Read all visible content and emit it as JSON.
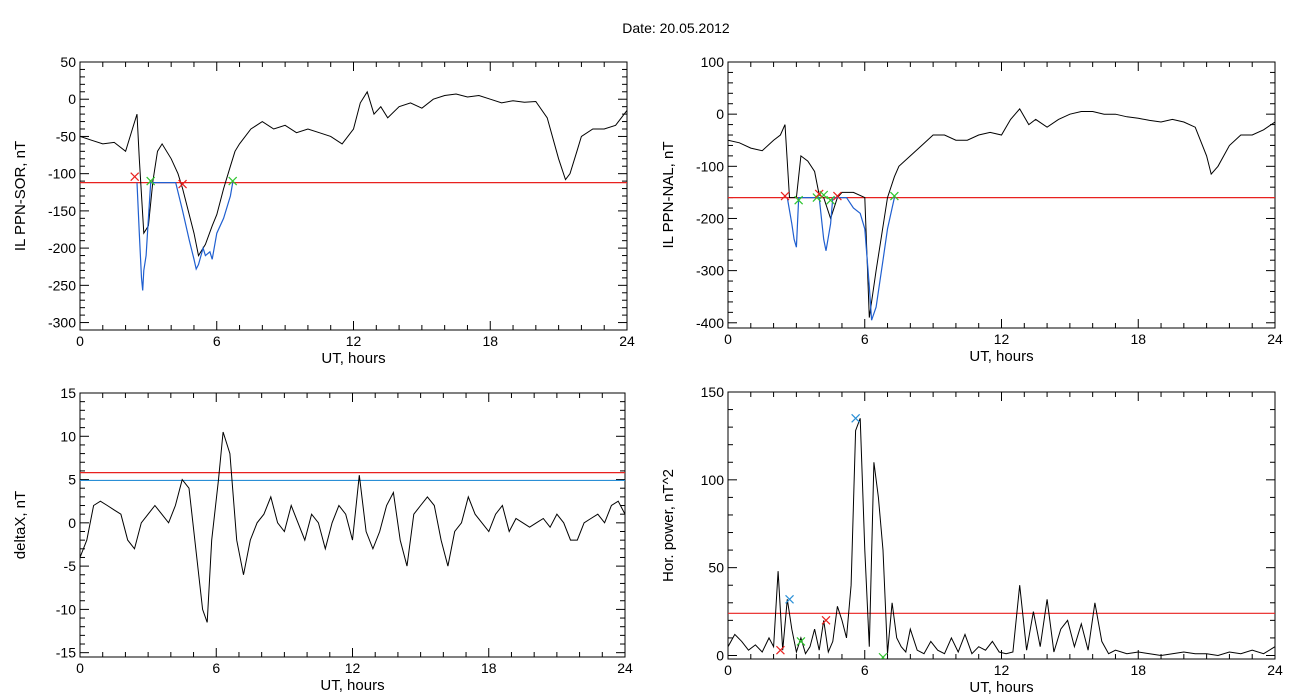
{
  "date_label": "Date:  20.05.2012",
  "chart_data": [
    {
      "id": "p1",
      "type": "line",
      "xlabel": "UT, hours",
      "ylabel": "IL PPN-SOR, nT",
      "xlim": [
        0,
        24
      ],
      "ylim": [
        -310,
        50
      ],
      "xticks": [
        0,
        6,
        12,
        18,
        24
      ],
      "yticks": [
        50,
        0,
        -50,
        -100,
        -150,
        -200,
        -250,
        -300
      ],
      "threshold": {
        "value": -112,
        "color": "#e8211f"
      },
      "series": [
        {
          "style": "black",
          "x": [
            0,
            0.5,
            1.0,
            1.5,
            2.0,
            2.3,
            2.5,
            2.6,
            2.8,
            3.0,
            3.2,
            3.4,
            3.6,
            4.0,
            4.3,
            4.5,
            5.0,
            5.2,
            5.5,
            5.8,
            6.0,
            6.3,
            6.6,
            6.8,
            7.0,
            7.5,
            8.0,
            8.5,
            9.0,
            9.5,
            10.0,
            10.5,
            11.0,
            11.5,
            12.0,
            12.3,
            12.6,
            12.9,
            13.2,
            13.5,
            14.0,
            14.5,
            15.0,
            15.5,
            16.0,
            16.5,
            17.0,
            17.5,
            18.0,
            18.5,
            19.0,
            19.5,
            20.0,
            20.5,
            21.0,
            21.3,
            21.5,
            21.8,
            22.0,
            22.5,
            23.0,
            23.5,
            24.0
          ],
          "y": [
            -50,
            -55,
            -60,
            -58,
            -70,
            -40,
            -20,
            -80,
            -180,
            -170,
            -110,
            -70,
            -60,
            -80,
            -100,
            -120,
            -180,
            -210,
            -195,
            -170,
            -155,
            -120,
            -90,
            -70,
            -60,
            -40,
            -30,
            -40,
            -35,
            -45,
            -40,
            -45,
            -50,
            -60,
            -40,
            -5,
            10,
            -20,
            -10,
            -25,
            -10,
            -5,
            -12,
            0,
            5,
            7,
            3,
            5,
            0,
            -5,
            -2,
            -4,
            -3,
            -25,
            -80,
            -108,
            -100,
            -70,
            -50,
            -40,
            -40,
            -35,
            -15
          ]
        },
        {
          "style": "blue",
          "x": [
            2.5,
            2.6,
            2.7,
            2.75,
            2.8,
            2.9,
            3.0,
            3.1,
            4.2,
            4.5,
            4.8,
            5.0,
            5.1,
            5.2,
            5.4,
            5.5,
            5.7,
            5.8,
            6.0,
            6.3,
            6.6,
            6.7
          ],
          "y": [
            -112,
            -180,
            -240,
            -257,
            -230,
            -210,
            -160,
            -112,
            -112,
            -150,
            -190,
            -215,
            -228,
            -222,
            -200,
            -210,
            -205,
            -215,
            -180,
            -160,
            -130,
            -112
          ]
        }
      ],
      "markers": [
        {
          "x": 2.4,
          "y": -104,
          "color": "#e8211f"
        },
        {
          "x": 3.1,
          "y": -110,
          "color": "#2ec52e"
        },
        {
          "x": 4.5,
          "y": -114,
          "color": "#e8211f"
        },
        {
          "x": 6.7,
          "y": -110,
          "color": "#2ec52e"
        }
      ]
    },
    {
      "id": "p2",
      "type": "line",
      "xlabel": "UT, hours",
      "ylabel": "IL PPN-NAL, nT",
      "xlim": [
        0,
        24
      ],
      "ylim": [
        -410,
        100
      ],
      "xticks": [
        0,
        6,
        12,
        18,
        24
      ],
      "yticks": [
        100,
        0,
        -100,
        -200,
        -300,
        -400
      ],
      "threshold": {
        "value": -160,
        "color": "#e8211f"
      },
      "series": [
        {
          "style": "black",
          "x": [
            0,
            0.5,
            1.0,
            1.5,
            2.0,
            2.3,
            2.5,
            2.7,
            3.0,
            3.2,
            3.5,
            3.8,
            4.0,
            4.2,
            4.5,
            4.8,
            5.0,
            5.5,
            6.0,
            6.2,
            6.5,
            7.0,
            7.3,
            7.5,
            8.0,
            8.5,
            9.0,
            9.5,
            10.0,
            10.5,
            11.0,
            11.5,
            12.0,
            12.4,
            12.8,
            13.2,
            13.5,
            14.0,
            14.5,
            15.0,
            15.5,
            16.0,
            16.5,
            17.0,
            17.5,
            18.0,
            18.5,
            19.0,
            19.5,
            20.0,
            20.5,
            21.0,
            21.2,
            21.5,
            22.0,
            22.5,
            23.0,
            23.5,
            24.0
          ],
          "y": [
            -50,
            -55,
            -65,
            -70,
            -50,
            -40,
            -20,
            -160,
            -160,
            -80,
            -90,
            -110,
            -155,
            -160,
            -200,
            -160,
            -150,
            -150,
            -160,
            -390,
            -300,
            -160,
            -120,
            -100,
            -80,
            -60,
            -40,
            -40,
            -50,
            -50,
            -40,
            -35,
            -40,
            -10,
            10,
            -20,
            -10,
            -25,
            -10,
            0,
            5,
            5,
            0,
            0,
            -5,
            -8,
            -12,
            -15,
            -10,
            -15,
            -25,
            -80,
            -115,
            -100,
            -60,
            -40,
            -40,
            -30,
            -15
          ]
        },
        {
          "style": "blue",
          "x": [
            2.6,
            2.8,
            2.9,
            3.0,
            3.1,
            3.8,
            4.0,
            4.2,
            4.3,
            4.5,
            4.6,
            5.2,
            5.5,
            5.8,
            6.0,
            6.2,
            6.3,
            6.5,
            6.8,
            7.0,
            7.2,
            7.3
          ],
          "y": [
            -160,
            -210,
            -240,
            -255,
            -160,
            -160,
            -160,
            -240,
            -262,
            -210,
            -160,
            -160,
            -180,
            -190,
            -220,
            -330,
            -395,
            -370,
            -280,
            -220,
            -180,
            -160
          ]
        }
      ],
      "markers": [
        {
          "x": 2.5,
          "y": -157,
          "color": "#e8211f"
        },
        {
          "x": 3.1,
          "y": -165,
          "color": "#2ec52e"
        },
        {
          "x": 3.9,
          "y": -160,
          "color": "#2ec52e"
        },
        {
          "x": 4.0,
          "y": -153,
          "color": "#e8211f"
        },
        {
          "x": 4.2,
          "y": -155,
          "color": "#2ec52e"
        },
        {
          "x": 4.5,
          "y": -165,
          "color": "#2ec52e"
        },
        {
          "x": 4.8,
          "y": -157,
          "color": "#e8211f"
        },
        {
          "x": 7.3,
          "y": -157,
          "color": "#2ec52e"
        }
      ]
    },
    {
      "id": "p3",
      "type": "line",
      "xlabel": "UT, hours",
      "ylabel": "deltaX, nT",
      "xlim": [
        0,
        24
      ],
      "ylim": [
        -15.5,
        15
      ],
      "xticks": [
        0,
        6,
        12,
        18,
        24
      ],
      "yticks": [
        15,
        10,
        5,
        0,
        -5,
        -10,
        -15
      ],
      "threshold": {
        "value": 5.8,
        "color": "#e8211f"
      },
      "threshold2": {
        "value": 4.9,
        "color": "#2a8fd6"
      },
      "series": [
        {
          "style": "black",
          "x": [
            0,
            0.3,
            0.6,
            0.9,
            1.2,
            1.5,
            1.8,
            2.1,
            2.4,
            2.7,
            3.0,
            3.3,
            3.6,
            3.9,
            4.2,
            4.5,
            4.8,
            5.1,
            5.4,
            5.6,
            5.8,
            6.1,
            6.3,
            6.6,
            6.9,
            7.2,
            7.5,
            7.8,
            8.1,
            8.4,
            8.7,
            9.0,
            9.3,
            9.6,
            9.9,
            10.2,
            10.5,
            10.8,
            11.1,
            11.4,
            11.7,
            12.0,
            12.3,
            12.6,
            12.9,
            13.2,
            13.5,
            13.8,
            14.1,
            14.4,
            14.7,
            15.0,
            15.3,
            15.6,
            15.9,
            16.2,
            16.5,
            16.8,
            17.1,
            17.4,
            17.7,
            18.0,
            18.3,
            18.6,
            18.9,
            19.2,
            19.5,
            19.8,
            20.1,
            20.4,
            20.7,
            21.0,
            21.3,
            21.6,
            21.9,
            22.2,
            22.5,
            22.8,
            23.1,
            23.4,
            23.7,
            24.0
          ],
          "y": [
            -4,
            -2,
            2,
            2.5,
            2,
            1.5,
            1,
            -2,
            -3,
            0,
            1,
            2,
            1,
            0,
            2,
            5,
            4,
            -3,
            -10,
            -11.5,
            -2,
            5,
            10.5,
            8,
            -2,
            -6,
            -2,
            0,
            1,
            3,
            0,
            -1,
            2,
            0,
            -2,
            1,
            0,
            -3,
            0,
            2,
            1,
            -2,
            5.5,
            -1,
            -3,
            -1,
            2,
            3.5,
            -2,
            -5,
            1,
            2,
            3,
            2,
            -2,
            -5,
            -1,
            0,
            3,
            1,
            0,
            -1,
            1,
            2,
            -1,
            0.5,
            0,
            -0.5,
            0,
            0.5,
            -0.5,
            1,
            0,
            -2,
            -2,
            0,
            0.5,
            1,
            0,
            2,
            2.5,
            1
          ]
        }
      ],
      "markers": []
    },
    {
      "id": "p4",
      "type": "line",
      "xlabel": "UT, hours",
      "ylabel": "Hor. power, nT^2",
      "xlim": [
        0,
        24
      ],
      "ylim": [
        -2,
        150
      ],
      "xticks": [
        0,
        6,
        12,
        18,
        24
      ],
      "yticks": [
        150,
        100,
        50,
        0
      ],
      "threshold": {
        "value": 24,
        "color": "#e8211f"
      },
      "series": [
        {
          "style": "black",
          "x": [
            0,
            0.3,
            0.6,
            0.9,
            1.2,
            1.5,
            1.8,
            2.0,
            2.2,
            2.4,
            2.6,
            2.8,
            3.0,
            3.2,
            3.4,
            3.6,
            3.8,
            4.0,
            4.2,
            4.4,
            4.6,
            4.8,
            5.0,
            5.2,
            5.4,
            5.6,
            5.8,
            6.0,
            6.2,
            6.4,
            6.6,
            6.8,
            7.0,
            7.2,
            7.4,
            7.6,
            7.8,
            8.0,
            8.3,
            8.6,
            8.9,
            9.2,
            9.5,
            9.8,
            10.1,
            10.4,
            10.7,
            11.0,
            11.3,
            11.6,
            11.9,
            12.2,
            12.5,
            12.8,
            13.1,
            13.4,
            13.7,
            14.0,
            14.3,
            14.6,
            14.9,
            15.2,
            15.5,
            15.8,
            16.1,
            16.4,
            16.7,
            17.0,
            17.5,
            18.0,
            18.5,
            19.0,
            19.5,
            20.0,
            20.5,
            21.0,
            21.5,
            22.0,
            22.5,
            23.0,
            23.5,
            24.0
          ],
          "y": [
            5,
            12,
            8,
            3,
            6,
            2,
            10,
            5,
            48,
            3,
            32,
            15,
            2,
            10,
            1,
            5,
            15,
            3,
            20,
            2,
            8,
            28,
            20,
            10,
            40,
            128,
            135,
            60,
            5,
            110,
            90,
            60,
            1,
            30,
            10,
            5,
            2,
            15,
            3,
            1,
            8,
            3,
            1,
            10,
            2,
            12,
            1,
            5,
            3,
            8,
            2,
            1,
            2,
            40,
            3,
            25,
            5,
            32,
            2,
            15,
            20,
            5,
            18,
            3,
            30,
            8,
            1,
            3,
            1,
            2,
            1,
            0,
            1,
            2,
            1,
            1,
            0,
            2,
            1,
            3,
            1,
            5
          ]
        }
      ],
      "markers": [
        {
          "x": 2.3,
          "y": 3,
          "color": "#e8211f"
        },
        {
          "x": 2.7,
          "y": 32,
          "color": "#2a8fd6"
        },
        {
          "x": 3.2,
          "y": 8,
          "color": "#2ec52e"
        },
        {
          "x": 4.3,
          "y": 20,
          "color": "#e8211f"
        },
        {
          "x": 5.6,
          "y": 135,
          "color": "#2a8fd6"
        },
        {
          "x": 6.8,
          "y": -1,
          "color": "#2ec52e"
        }
      ]
    }
  ]
}
